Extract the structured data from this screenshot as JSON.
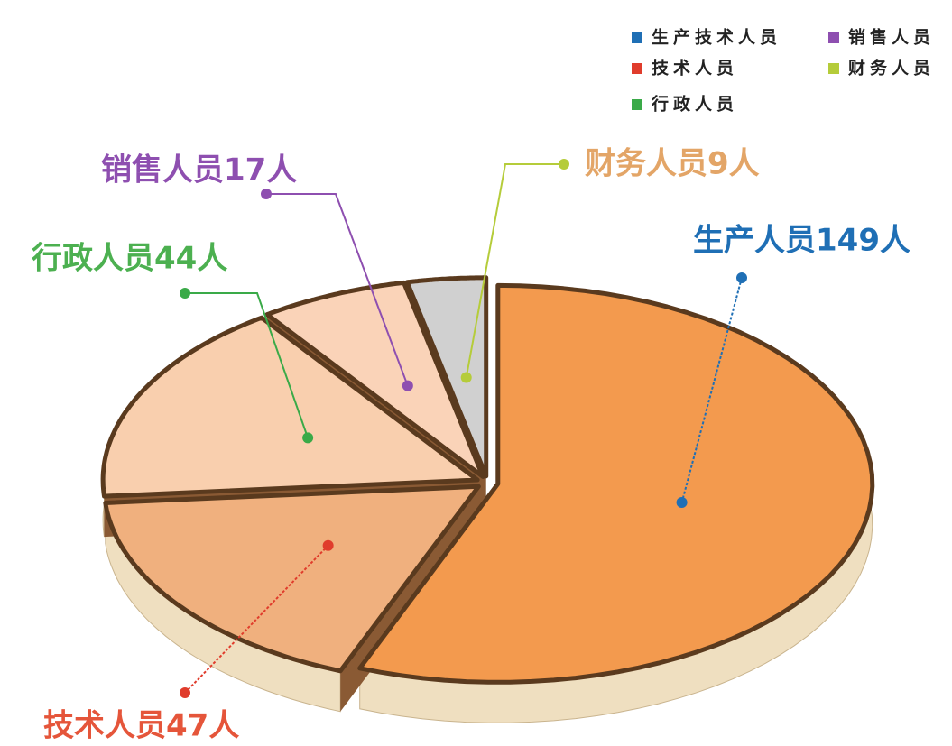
{
  "chart_data": {
    "type": "pie",
    "categories": [
      "生产技术人员",
      "技术人员",
      "行政人员",
      "销售人员",
      "财务人员"
    ],
    "values": [
      149,
      47,
      44,
      17,
      9
    ],
    "value_labels": [
      "生产人员149人",
      "技术人员47人",
      "行政人员44人",
      "销售人员17人",
      "财务人员9人"
    ],
    "legend_colors": [
      "#1f6fb5",
      "#e03c2c",
      "#3aaa48",
      "#8e4fb0",
      "#b5cc3a"
    ],
    "label_colors": [
      "#1f6fb5",
      "#e5553a",
      "#4cb050",
      "#8e4fb0",
      "#e3a567"
    ],
    "slice_colors": [
      "#f39a4e",
      "#f0b07e",
      "#f9cfae",
      "#fad3b8",
      "#d0d0d0"
    ],
    "side_color": "#efdfc0",
    "legend": "top-right"
  }
}
